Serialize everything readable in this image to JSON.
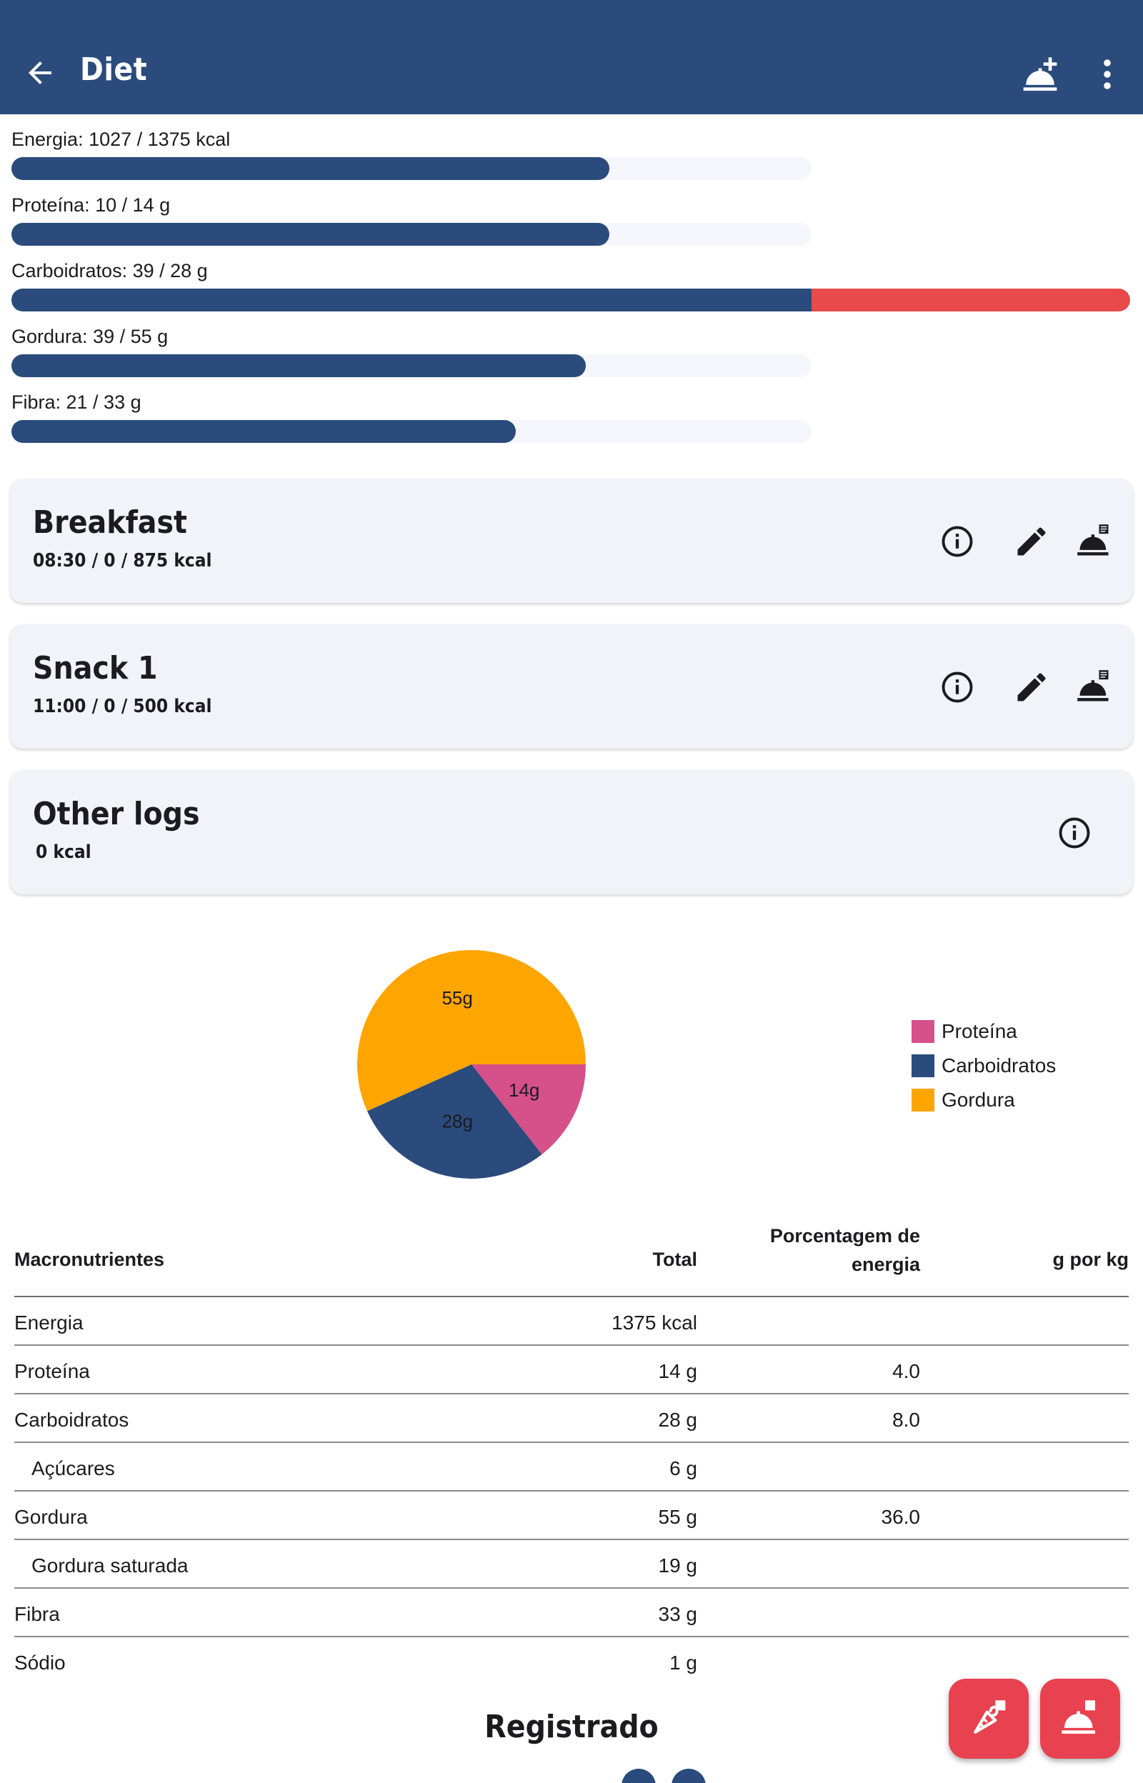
{
  "appbar": {
    "title": "Diet",
    "back_icon": "arrow-back-icon",
    "add_icon": "room-service-plus-icon",
    "menu_icon": "more-vert-icon"
  },
  "progress": [
    {
      "label": "Energia: 1027 / 1375 kcal",
      "fraction": 0.747,
      "over": 0
    },
    {
      "label": "Proteína: 10 / 14 g",
      "fraction": 0.747,
      "over": 0
    },
    {
      "label": "Carboidratos: 39 / 28 g",
      "fraction": 1.0,
      "over": 0.393
    },
    {
      "label": "Gordura: 39 / 55 g",
      "fraction": 0.718,
      "over": 0
    },
    {
      "label": "Fibra: 21 / 33 g",
      "fraction": 0.63,
      "over": 0
    }
  ],
  "colors": {
    "primary": "#2a4b7c",
    "over": "#e84a4a",
    "protein": "#d6508a",
    "carbs": "#2a4b7c",
    "fat": "#ffa500",
    "fab": "#e8414f"
  },
  "meals": [
    {
      "title": "Breakfast",
      "subtitle": "08:30 /  0 / 875 kcal",
      "icons": [
        "info-icon",
        "edit-icon",
        "log-meal-icon"
      ]
    },
    {
      "title": "Snack 1",
      "subtitle": "11:00 /  0 / 500 kcal",
      "icons": [
        "info-icon",
        "edit-icon",
        "log-meal-icon"
      ]
    },
    {
      "title": "Other logs",
      "subtitle": " 0 kcal",
      "icons": [
        "info-icon"
      ]
    }
  ],
  "chart_data": {
    "type": "pie",
    "title": "",
    "slices": [
      {
        "name": "Proteína",
        "value": 14,
        "label": "14g",
        "color": "#d6508a"
      },
      {
        "name": "Carboidratos",
        "value": 28,
        "label": "28g",
        "color": "#2a4b7c"
      },
      {
        "name": "Gordura",
        "value": 55,
        "label": "55g",
        "color": "#ffa500"
      }
    ],
    "legend": [
      "Proteína",
      "Carboidratos",
      "Gordura"
    ],
    "legend_position": "right"
  },
  "table": {
    "headers": [
      "Macronutrientes",
      "Total",
      "Porcentagem de energia",
      "g por kg"
    ],
    "header_pct_line1": "Porcentagem de",
    "header_pct_line2": "energia",
    "rows": [
      {
        "name": "Energia",
        "total": "1375 kcal",
        "pct": "",
        "gkg": "",
        "indent": false
      },
      {
        "name": "Proteína",
        "total": "14 g",
        "pct": "4.0",
        "gkg": "",
        "indent": false
      },
      {
        "name": "Carboidratos",
        "total": "28 g",
        "pct": "8.0",
        "gkg": "",
        "indent": false
      },
      {
        "name": "Açúcares",
        "total": "6 g",
        "pct": "",
        "gkg": "",
        "indent": true
      },
      {
        "name": "Gordura",
        "total": "55 g",
        "pct": "36.0",
        "gkg": "",
        "indent": false
      },
      {
        "name": "Gordura saturada",
        "total": "19 g",
        "pct": "",
        "gkg": "",
        "indent": true
      },
      {
        "name": "Fibra",
        "total": "33 g",
        "pct": "",
        "gkg": "",
        "indent": false
      },
      {
        "name": "Sódio",
        "total": "1 g",
        "pct": "",
        "gkg": "",
        "indent": false
      }
    ]
  },
  "logged": {
    "title": "Registrado"
  },
  "fabs": [
    {
      "icon": "log-ingredient-icon"
    },
    {
      "icon": "log-meal-icon"
    }
  ]
}
